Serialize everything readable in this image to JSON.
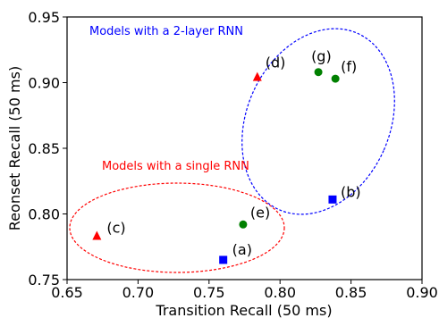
{
  "chart_data": {
    "type": "scatter",
    "xlabel": "Transition Recall (50 ms)",
    "ylabel": "Reonset Recall (50 ms)",
    "xlim": [
      0.65,
      0.9
    ],
    "ylim": [
      0.75,
      0.95
    ],
    "xticks": [
      "0.65",
      "0.70",
      "0.75",
      "0.80",
      "0.85",
      "0.90"
    ],
    "yticks": [
      "0.75",
      "0.80",
      "0.85",
      "0.90",
      "0.95"
    ],
    "grid": false,
    "points": [
      {
        "label": "(a)",
        "x": 0.76,
        "y": 0.765,
        "marker": "square",
        "color": "#0000ff"
      },
      {
        "label": "(b)",
        "x": 0.837,
        "y": 0.811,
        "marker": "square",
        "color": "#0000ff"
      },
      {
        "label": "(c)",
        "x": 0.671,
        "y": 0.783,
        "marker": "triangle",
        "color": "#ff0000"
      },
      {
        "label": "(d)",
        "x": 0.784,
        "y": 0.904,
        "marker": "triangle",
        "color": "#ff0000"
      },
      {
        "label": "(e)",
        "x": 0.774,
        "y": 0.792,
        "marker": "circle",
        "color": "#008000"
      },
      {
        "label": "(f)",
        "x": 0.839,
        "y": 0.903,
        "marker": "circle",
        "color": "#008000"
      },
      {
        "label": "(g)",
        "x": 0.827,
        "y": 0.908,
        "marker": "circle",
        "color": "#008000"
      }
    ],
    "annotations": [
      {
        "text": "Models with a 2-layer RNN",
        "color": "#0000ff"
      },
      {
        "text": "Models with a single RNN",
        "color": "#ff0000"
      }
    ]
  }
}
